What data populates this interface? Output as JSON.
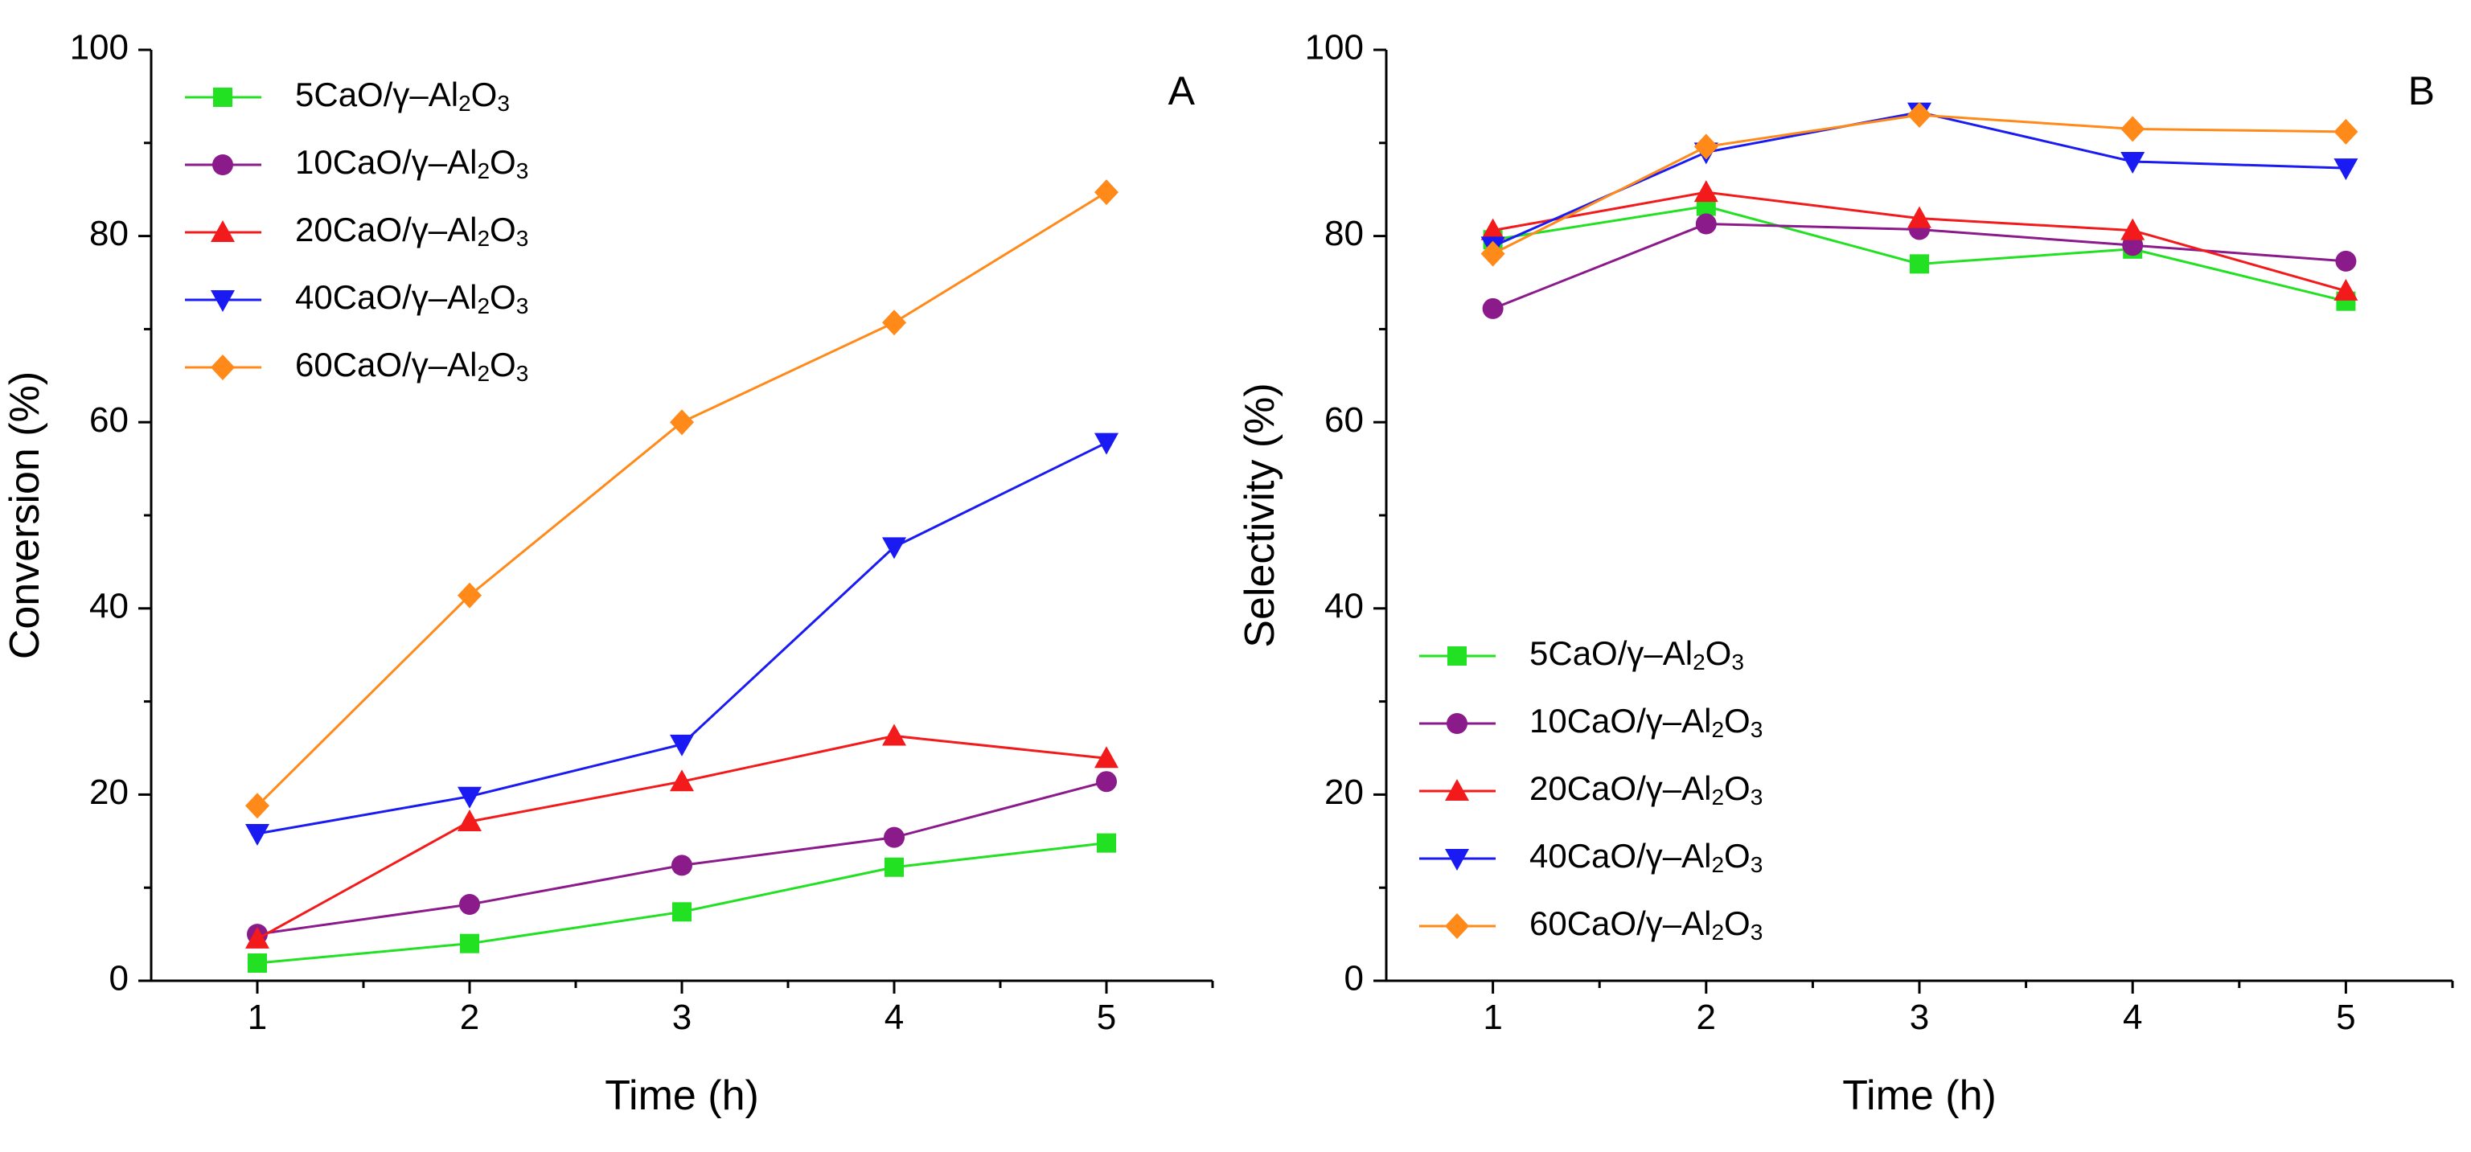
{
  "chart_data": [
    {
      "type": "line",
      "panel_label": "A",
      "xlabel": "Time (h)",
      "ylabel": "Conversion (%)",
      "xlim": [
        0.5,
        5.5
      ],
      "ylim": [
        0,
        100
      ],
      "xticks": [
        1,
        2,
        3,
        4,
        5
      ],
      "yticks": [
        0,
        20,
        40,
        60,
        80,
        100
      ],
      "legend_position": "top-left",
      "series": [
        {
          "key": "ca5",
          "name_prefix": "5CaO/γ–Al",
          "values": [
            1.9,
            4.0,
            7.4,
            12.2,
            14.8
          ]
        },
        {
          "key": "ca10",
          "name_prefix": "10CaO/γ–Al",
          "values": [
            5.0,
            8.2,
            12.4,
            15.4,
            21.4
          ]
        },
        {
          "key": "ca20",
          "name_prefix": "20CaO/γ–Al",
          "values": [
            4.5,
            17.1,
            21.4,
            26.3,
            23.9
          ]
        },
        {
          "key": "ca40",
          "name_prefix": "40CaO/γ–Al",
          "values": [
            15.8,
            19.8,
            25.4,
            46.6,
            57.8
          ]
        },
        {
          "key": "ca60",
          "name_prefix": "60CaO/γ–Al",
          "values": [
            18.8,
            41.4,
            60.0,
            70.7,
            84.7
          ]
        }
      ],
      "x": [
        1,
        2,
        3,
        4,
        5
      ]
    },
    {
      "type": "line",
      "panel_label": "B",
      "xlabel": "Time (h)",
      "ylabel": "Selectivity (%)",
      "xlim": [
        0.5,
        5.5
      ],
      "ylim": [
        0,
        100
      ],
      "xticks": [
        1,
        2,
        3,
        4,
        5
      ],
      "yticks": [
        0,
        20,
        40,
        60,
        80,
        100
      ],
      "legend_position": "bottom-left",
      "series": [
        {
          "key": "ca5",
          "name_prefix": "5CaO/γ–Al",
          "values": [
            79.6,
            83.2,
            77.0,
            78.6,
            73.0
          ]
        },
        {
          "key": "ca10",
          "name_prefix": "10CaO/γ–Al",
          "values": [
            72.2,
            81.3,
            80.7,
            79.0,
            77.3
          ]
        },
        {
          "key": "ca20",
          "name_prefix": "20CaO/γ–Al",
          "values": [
            80.6,
            84.7,
            81.9,
            80.6,
            74.1
          ]
        },
        {
          "key": "ca40",
          "name_prefix": "40CaO/γ–Al",
          "values": [
            78.9,
            89.0,
            93.3,
            88.0,
            87.3
          ]
        },
        {
          "key": "ca60",
          "name_prefix": "60CaO/γ–Al",
          "values": [
            78.1,
            89.6,
            93.0,
            91.5,
            91.2
          ]
        }
      ],
      "x": [
        1,
        2,
        3,
        4,
        5
      ]
    }
  ],
  "formula_parts": {
    "sub1": "2",
    "mid": "O",
    "sub2": "3"
  },
  "series_style": {
    "ca5": {
      "color": "#22e022",
      "marker": "square"
    },
    "ca10": {
      "color": "#8b1a8b",
      "marker": "circle"
    },
    "ca20": {
      "color": "#f21a1a",
      "marker": "triangle-up"
    },
    "ca40": {
      "color": "#1a1af2",
      "marker": "triangle-down"
    },
    "ca60": {
      "color": "#ff8a1a",
      "marker": "diamond"
    }
  }
}
